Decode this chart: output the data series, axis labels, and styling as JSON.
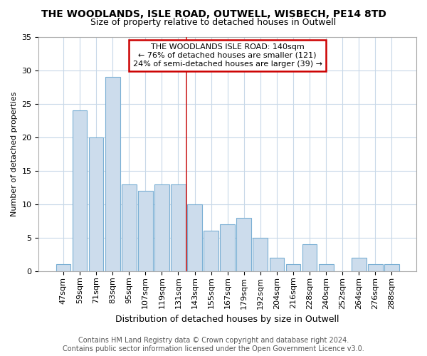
{
  "title1": "THE WOODLANDS, ISLE ROAD, OUTWELL, WISBECH, PE14 8TD",
  "title2": "Size of property relative to detached houses in Outwell",
  "xlabel": "Distribution of detached houses by size in Outwell",
  "ylabel": "Number of detached properties",
  "categories": [
    "47sqm",
    "59sqm",
    "71sqm",
    "83sqm",
    "95sqm",
    "107sqm",
    "119sqm",
    "131sqm",
    "143sqm",
    "155sqm",
    "167sqm",
    "179sqm",
    "192sqm",
    "204sqm",
    "216sqm",
    "228sqm",
    "240sqm",
    "252sqm",
    "264sqm",
    "276sqm",
    "288sqm"
  ],
  "values": [
    1,
    24,
    20,
    29,
    13,
    12,
    13,
    13,
    10,
    6,
    7,
    8,
    5,
    2,
    1,
    4,
    1,
    0,
    2,
    1,
    1
  ],
  "bar_color": "#ccdcec",
  "bar_edge_color": "#7aafd4",
  "subject_line_index": 8,
  "subject_line_color": "#cc2222",
  "annotation_line1": "THE WOODLANDS ISLE ROAD: 140sqm",
  "annotation_line2": "← 76% of detached houses are smaller (121)",
  "annotation_line3": "24% of semi-detached houses are larger (39) →",
  "annotation_box_color": "#ffffff",
  "annotation_box_edge": "#cc0000",
  "footer": "Contains HM Land Registry data © Crown copyright and database right 2024.\nContains public sector information licensed under the Open Government Licence v3.0.",
  "bg_color": "#ffffff",
  "plot_bg_color": "#ffffff",
  "grid_color": "#c8d8e8",
  "ylim": [
    0,
    35
  ],
  "yticks": [
    0,
    5,
    10,
    15,
    20,
    25,
    30,
    35
  ],
  "title1_fontsize": 10,
  "title2_fontsize": 9,
  "xlabel_fontsize": 9,
  "ylabel_fontsize": 8,
  "tick_fontsize": 8,
  "annot_fontsize": 8,
  "footer_fontsize": 7
}
